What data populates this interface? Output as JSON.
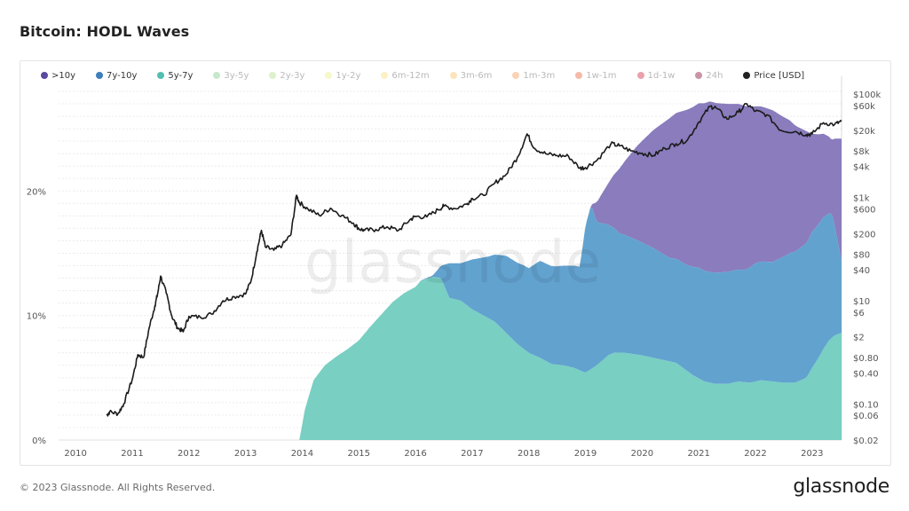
{
  "page": {
    "title": "Bitcoin: HODL Waves",
    "copyright": "© 2023 Glassnode. All Rights Reserved.",
    "logo_text": "glassnode",
    "watermark_text": "glassnode"
  },
  "legend": [
    {
      "label": ">10y",
      "color": "#5a4a9e",
      "active": true
    },
    {
      "label": "7y-10y",
      "color": "#3d7fbd",
      "active": true
    },
    {
      "label": "5y-7y",
      "color": "#52bfb0",
      "active": true
    },
    {
      "label": "3y-5y",
      "color": "#7fcf8a",
      "active": false
    },
    {
      "label": "2y-3y",
      "color": "#b4e08a",
      "active": false
    },
    {
      "label": "1y-2y",
      "color": "#ecf08a",
      "active": false
    },
    {
      "label": "6m-12m",
      "color": "#f6e07d",
      "active": false
    },
    {
      "label": "3m-6m",
      "color": "#f6c46e",
      "active": false
    },
    {
      "label": "1m-3m",
      "color": "#f39c5a",
      "active": false
    },
    {
      "label": "1w-1m",
      "color": "#e8643e",
      "active": false
    },
    {
      "label": "1d-1w",
      "color": "#d32f45",
      "active": false
    },
    {
      "label": "24h",
      "color": "#8a0f3a",
      "active": false
    },
    {
      "label": "Price [USD]",
      "color": "#222222",
      "active": true
    }
  ],
  "chart_data": {
    "type": "area",
    "title": "Bitcoin: HODL Waves",
    "x_ticks": [
      "2010",
      "2011",
      "2012",
      "2013",
      "2014",
      "2015",
      "2016",
      "2017",
      "2018",
      "2019",
      "2020",
      "2021",
      "2022",
      "2023"
    ],
    "x_range": [
      2009.7,
      2023.52
    ],
    "y_left_ticks": [
      "0%",
      "10%",
      "20%"
    ],
    "y_left_range_percent": [
      0,
      28.5
    ],
    "y_right_ticks": [
      "$100k",
      "$60k",
      "$20k",
      "$8k",
      "$4k",
      "$1k",
      "$600",
      "$200",
      "$80",
      "$40",
      "$10",
      "$6",
      "$2",
      "$0.80",
      "$0.40",
      "$0.10",
      "$0.06",
      "$0.02"
    ],
    "y_right_scale": "log",
    "y_right_range_usd": [
      0.02,
      150000
    ],
    "grid": true,
    "stacking": "stacked",
    "colors": {
      "band_10y": "#8a7cbd",
      "band_7y10y": "#62a2cf",
      "band_5y7y": "#78cfc2",
      "price": "#1b1b1b"
    },
    "series": [
      {
        "name": "5y-7y",
        "x": [
          2013.95,
          2014.05,
          2014.2,
          2014.4,
          2014.6,
          2014.8,
          2015.0,
          2015.2,
          2015.4,
          2015.6,
          2015.8,
          2016.0,
          2016.1,
          2016.3,
          2016.45,
          2016.6,
          2016.8,
          2017.0,
          2017.2,
          2017.4,
          2017.6,
          2017.8,
          2018.0,
          2018.2,
          2018.4,
          2018.6,
          2018.8,
          2019.0,
          2019.2,
          2019.4,
          2019.5,
          2019.7,
          2020.0,
          2020.3,
          2020.6,
          2020.9,
          2021.1,
          2021.3,
          2021.5,
          2021.7,
          2021.9,
          2022.1,
          2022.3,
          2022.5,
          2022.7,
          2022.9,
          2023.0,
          2023.1,
          2023.2,
          2023.3,
          2023.4,
          2023.52
        ],
        "values": [
          0.0,
          2.5,
          4.8,
          6.0,
          6.7,
          7.3,
          8.0,
          9.1,
          10.1,
          11.1,
          11.8,
          12.3,
          12.8,
          13.1,
          13.0,
          11.4,
          11.2,
          10.5,
          10.0,
          9.5,
          8.6,
          7.7,
          7.0,
          6.6,
          6.1,
          6.0,
          5.8,
          5.4,
          6.0,
          6.8,
          7.0,
          7.0,
          6.8,
          6.5,
          6.2,
          5.2,
          4.7,
          4.5,
          4.5,
          4.7,
          4.6,
          4.8,
          4.7,
          4.6,
          4.6,
          5.0,
          5.8,
          6.5,
          7.3,
          8.0,
          8.4,
          8.6
        ]
      },
      {
        "name": "7y-10y",
        "x": [
          2016.0,
          2016.3,
          2016.45,
          2016.6,
          2016.8,
          2017.0,
          2017.3,
          2017.6,
          2017.9,
          2018.0,
          2018.2,
          2018.5,
          2018.7,
          2018.9,
          2019.0,
          2019.1,
          2019.2,
          2019.4,
          2019.6,
          2019.9,
          2020.2,
          2020.5,
          2020.8,
          2021.0,
          2021.2,
          2021.5,
          2021.8,
          2022.0,
          2022.3,
          2022.6,
          2022.9,
          2023.0,
          2023.2,
          2023.35,
          2023.52
        ],
        "values": [
          0.0,
          0.1,
          1.0,
          2.8,
          3.0,
          4.0,
          5.0,
          6.2,
          6.7,
          6.8,
          7.8,
          7.9,
          8.1,
          8.3,
          11.8,
          13.2,
          11.5,
          10.5,
          9.6,
          9.2,
          8.8,
          8.3,
          8.5,
          8.9,
          8.9,
          9.0,
          9.0,
          9.5,
          9.6,
          10.4,
          10.8,
          10.9,
          10.6,
          10.0,
          5.8
        ]
      },
      {
        "name": ">10y",
        "x": [
          2019.0,
          2019.1,
          2019.2,
          2019.4,
          2019.6,
          2019.9,
          2020.2,
          2020.5,
          2020.8,
          2021.0,
          2021.2,
          2021.5,
          2021.8,
          2022.0,
          2022.3,
          2022.6,
          2022.9,
          2023.0,
          2023.2,
          2023.35,
          2023.52
        ],
        "values": [
          0.0,
          0.0,
          1.6,
          3.3,
          5.2,
          7.5,
          9.5,
          11.3,
          12.5,
          13.2,
          13.7,
          13.5,
          13.2,
          12.6,
          12.2,
          10.7,
          9.0,
          7.9,
          6.7,
          5.9,
          9.8
        ]
      },
      {
        "name": "Price [USD]",
        "axis": "right",
        "x": [
          2010.55,
          2010.6,
          2010.75,
          2010.85,
          2011.0,
          2011.1,
          2011.2,
          2011.3,
          2011.4,
          2011.45,
          2011.5,
          2011.6,
          2011.7,
          2011.8,
          2011.9,
          2012.0,
          2012.2,
          2012.4,
          2012.6,
          2012.8,
          2013.0,
          2013.1,
          2013.2,
          2013.28,
          2013.35,
          2013.5,
          2013.65,
          2013.8,
          2013.9,
          2013.95,
          2014.1,
          2014.3,
          2014.5,
          2014.7,
          2014.9,
          2015.0,
          2015.1,
          2015.3,
          2015.5,
          2015.7,
          2015.9,
          2016.0,
          2016.2,
          2016.4,
          2016.5,
          2016.7,
          2016.9,
          2017.0,
          2017.2,
          2017.4,
          2017.6,
          2017.8,
          2017.97,
          2018.1,
          2018.3,
          2018.5,
          2018.7,
          2018.9,
          2019.0,
          2019.2,
          2019.45,
          2019.6,
          2019.8,
          2020.0,
          2020.2,
          2020.4,
          2020.6,
          2020.8,
          2021.0,
          2021.2,
          2021.3,
          2021.5,
          2021.7,
          2021.85,
          2022.0,
          2022.2,
          2022.45,
          2022.7,
          2022.9,
          2023.0,
          2023.2,
          2023.4,
          2023.52
        ],
        "values": [
          0.06,
          0.07,
          0.065,
          0.1,
          0.3,
          0.9,
          0.8,
          3.0,
          8.0,
          14.0,
          30.0,
          14.0,
          5.0,
          3.0,
          2.5,
          5.0,
          4.8,
          5.5,
          10.0,
          12.0,
          13.5,
          25.0,
          90.0,
          230.0,
          110.0,
          95.0,
          120.0,
          190.0,
          1100.0,
          800.0,
          600.0,
          450.0,
          620.0,
          450.0,
          320.0,
          250.0,
          230.0,
          240.0,
          270.0,
          230.0,
          370.0,
          430.0,
          420.0,
          580.0,
          680.0,
          610.0,
          740.0,
          960.0,
          1100.0,
          1900.0,
          2800.0,
          6000.0,
          17000.0,
          9000.0,
          7000.0,
          6500.0,
          6300.0,
          3700.0,
          3800.0,
          5200.0,
          11000.0,
          10000.0,
          8000.0,
          7200.0,
          6500.0,
          9000.0,
          11000.0,
          13000.0,
          29000.0,
          58000.0,
          55000.0,
          33000.0,
          45000.0,
          65000.0,
          47000.0,
          40000.0,
          20000.0,
          19000.0,
          16500.0,
          17000.0,
          28000.0,
          26000.0,
          30000.0
        ]
      }
    ]
  }
}
